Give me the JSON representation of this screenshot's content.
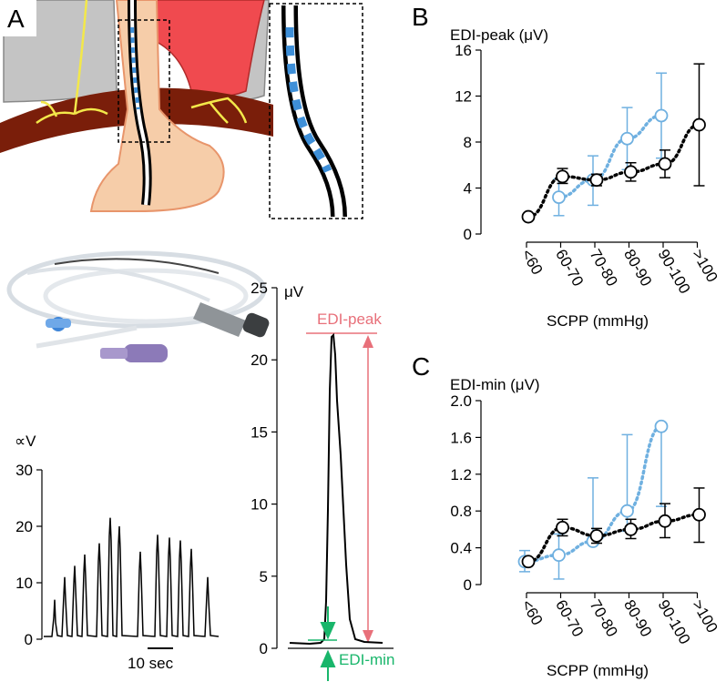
{
  "figure": {
    "panel_letters": {
      "A": "A",
      "B": "B",
      "C": "C"
    },
    "colors": {
      "black": "#000000",
      "blue": "#6FB0E0",
      "edi_peak": "#E8707A",
      "edi_min": "#19B66B",
      "nerve": "#F3E84A",
      "diaphragm": "#7A1E0A",
      "heart": "#F04A4F",
      "tissue": "#F6CDA9",
      "gray": "#C4C4C4"
    }
  },
  "raw_trace": {
    "unit_label": "∝V",
    "yticks": [
      "30",
      "20",
      "10",
      "0"
    ],
    "scalebar_label": "10 sec",
    "peaks": [
      7,
      11,
      13,
      15,
      17,
      21.5,
      20,
      15.5,
      18.5,
      18,
      17.5,
      16,
      11
    ]
  },
  "breath_trace": {
    "unit_label": "μV",
    "yticks": [
      "25",
      "20",
      "15",
      "10",
      "5",
      "0"
    ],
    "edi_peak_label": "EDI-peak",
    "edi_min_label": "EDI-min"
  },
  "chart_data": [
    {
      "type": "scatter",
      "panel": "B",
      "title": "EDI-peak (μV)",
      "xlabel": "SCPP (mmHg)",
      "ylabel": "EDI-peak (μV)",
      "categories": [
        "<60",
        "60-70",
        "70-80",
        "80-90",
        "90-100",
        ">100"
      ],
      "ylim": [
        0,
        16
      ],
      "yticks": [
        "0",
        "4",
        "8",
        "12",
        "16"
      ],
      "series": [
        {
          "name": "black",
          "color": "#000000",
          "values": [
            1.5,
            5.0,
            4.7,
            5.4,
            6.1,
            9.5
          ],
          "err_low": [
            1.5,
            4.4,
            4.2,
            4.6,
            4.9,
            4.2
          ],
          "err_high": [
            1.5,
            5.7,
            5.2,
            6.2,
            7.3,
            14.8
          ]
        },
        {
          "name": "blue",
          "color": "#6FB0E0",
          "values": [
            null,
            3.2,
            4.7,
            8.3,
            10.3,
            null
          ],
          "err_low": [
            null,
            1.6,
            2.5,
            5.6,
            6.6,
            null
          ],
          "err_high": [
            null,
            4.8,
            6.8,
            11.0,
            14.0,
            null
          ]
        }
      ]
    },
    {
      "type": "scatter",
      "panel": "C",
      "title": "EDI-min (μV)",
      "xlabel": "SCPP (mmHg)",
      "ylabel": "EDI-min (μV)",
      "categories": [
        "<60",
        "60-70",
        "70-80",
        "80-90",
        "90-100",
        ">100"
      ],
      "ylim": [
        0,
        2.0
      ],
      "yticks": [
        "0",
        "0.4",
        "0.8",
        "1.2",
        "1.6",
        "2.0"
      ],
      "series": [
        {
          "name": "black",
          "color": "#000000",
          "values": [
            0.25,
            0.62,
            0.53,
            0.6,
            0.69,
            0.76
          ],
          "err_low": [
            0.25,
            0.53,
            0.45,
            0.5,
            0.51,
            0.46
          ],
          "err_high": [
            0.25,
            0.71,
            0.61,
            0.71,
            0.88,
            1.05
          ]
        },
        {
          "name": "blue",
          "color": "#6FB0E0",
          "values": [
            0.25,
            0.32,
            0.47,
            0.8,
            1.72,
            null
          ],
          "err_low": [
            0.14,
            0.06,
            0.44,
            0.58,
            0.85,
            null
          ],
          "err_high": [
            0.37,
            0.55,
            1.16,
            1.63,
            1.73,
            null
          ]
        }
      ]
    }
  ]
}
